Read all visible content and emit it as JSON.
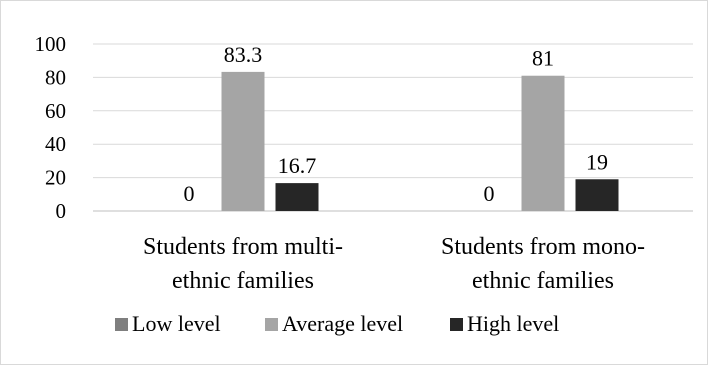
{
  "chart_data": {
    "type": "bar",
    "categories": [
      [
        "Students from multi-",
        "ethnic families"
      ],
      [
        "Students from mono-",
        "ethnic families"
      ]
    ],
    "series": [
      {
        "name": "Low level",
        "color": "#7f7f7f",
        "values": [
          0,
          0
        ]
      },
      {
        "name": "Average level",
        "color": "#a5a5a5",
        "values": [
          83.3,
          81
        ]
      },
      {
        "name": "High level",
        "color": "#262626",
        "values": [
          16.7,
          19
        ]
      }
    ],
    "data_labels": [
      [
        "0",
        "83.3",
        "16.7"
      ],
      [
        "0",
        "81",
        "19"
      ]
    ],
    "y_ticks": [
      "0",
      "20",
      "40",
      "60",
      "80",
      "100"
    ],
    "ylim": [
      0,
      100
    ],
    "grid": true,
    "legend_position": "bottom",
    "title": "",
    "xlabel": "",
    "ylabel": ""
  }
}
